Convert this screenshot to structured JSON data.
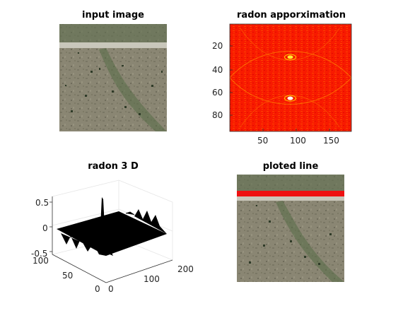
{
  "figure": {
    "panels": [
      {
        "title": "input image"
      },
      {
        "title": "radon apporximation"
      },
      {
        "title": "radon 3 D"
      },
      {
        "title": "ploted line"
      }
    ]
  },
  "chart_data": [
    {
      "type": "image",
      "title": "input image",
      "description_tokens": [
        "satellite-terrain"
      ]
    },
    {
      "type": "heatmap",
      "title": "radon apporximation",
      "colormap": "hot",
      "xlim": [
        1,
        180
      ],
      "ylim": [
        1,
        95
      ],
      "xticks": [
        50,
        100,
        150
      ],
      "yticks": [
        20,
        40,
        60,
        80
      ],
      "peaks": [
        {
          "x": 90,
          "y": 30
        },
        {
          "x": 90,
          "y": 66
        }
      ]
    },
    {
      "type": "surface",
      "title": "radon 3 D",
      "zlim": [
        -0.5,
        0.5
      ],
      "zticks": [
        -0.5,
        0,
        0.5
      ],
      "x_ticks": [
        0,
        100,
        200
      ],
      "y_ticks": [
        0,
        50,
        100
      ],
      "peak": {
        "x": 90,
        "y": 66,
        "z": 0.6
      }
    },
    {
      "type": "image",
      "title": "ploted line",
      "overlay": {
        "kind": "horizontal-line",
        "color": "#ee0000"
      }
    }
  ],
  "colors": {
    "heat_base": "#ff0000",
    "overlay_line": "#ee1111",
    "surface": "#000000"
  }
}
